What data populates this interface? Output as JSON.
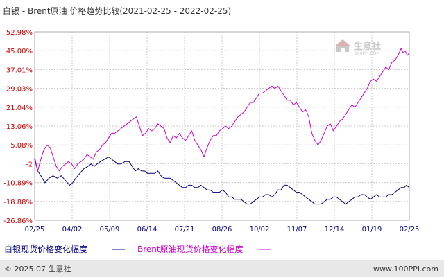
{
  "chart_data": {
    "type": "line",
    "title": "白银 - Brent原油 价格趋势比较(2021-02-25 - 2022-02-25)",
    "y_ticks": [
      "52.98%",
      "45.00%",
      "37.01%",
      "29.03%",
      "21.04%",
      "13.06%",
      "5.08%",
      "-2",
      "-10.89%",
      "-18.88%",
      "-26.86%"
    ],
    "ylim": [
      -26.86,
      52.98
    ],
    "x_ticks": [
      "02/25",
      "04/02",
      "05/09",
      "06/14",
      "07/21",
      "08/26",
      "10/02",
      "11/07",
      "12/14",
      "01/19",
      "02/25"
    ],
    "x_range": [
      "2021-02-25",
      "2022-02-25"
    ],
    "grid": true,
    "legend_position": "bottom-left",
    "series": [
      {
        "name": "白银现货价格变化幅度",
        "color": "#000080",
        "points": [
          [
            0,
            -1
          ],
          [
            3,
            -6
          ],
          [
            6,
            -8
          ],
          [
            10,
            -11
          ],
          [
            14,
            -9
          ],
          [
            18,
            -8
          ],
          [
            22,
            -9
          ],
          [
            26,
            -8
          ],
          [
            30,
            -10
          ],
          [
            34,
            -12
          ],
          [
            37,
            -11
          ],
          [
            40,
            -9
          ],
          [
            44,
            -7
          ],
          [
            48,
            -5
          ],
          [
            52,
            -4
          ],
          [
            55,
            -3
          ],
          [
            58,
            -4
          ],
          [
            61,
            -3
          ],
          [
            64,
            -2
          ],
          [
            68,
            -1
          ],
          [
            72,
            0
          ],
          [
            75,
            -1
          ],
          [
            78,
            -2
          ],
          [
            81,
            -3
          ],
          [
            84,
            -3
          ],
          [
            88,
            -2
          ],
          [
            92,
            -2
          ],
          [
            95,
            -4
          ],
          [
            98,
            -6
          ],
          [
            101,
            -5
          ],
          [
            104,
            -6
          ],
          [
            107,
            -6
          ],
          [
            110,
            -7
          ],
          [
            113,
            -7
          ],
          [
            117,
            -7
          ],
          [
            120,
            -6
          ],
          [
            123,
            -8
          ],
          [
            126,
            -9
          ],
          [
            129,
            -9
          ],
          [
            132,
            -9
          ],
          [
            135,
            -10
          ],
          [
            138,
            -11
          ],
          [
            141,
            -12
          ],
          [
            144,
            -13
          ],
          [
            147,
            -13
          ],
          [
            150,
            -12
          ],
          [
            153,
            -12
          ],
          [
            156,
            -13
          ],
          [
            159,
            -13
          ],
          [
            162,
            -12
          ],
          [
            165,
            -13
          ],
          [
            168,
            -14
          ],
          [
            171,
            -14
          ],
          [
            174,
            -15
          ],
          [
            177,
            -15
          ],
          [
            180,
            -15
          ],
          [
            183,
            -14
          ],
          [
            186,
            -15
          ],
          [
            189,
            -17
          ],
          [
            192,
            -17
          ],
          [
            195,
            -18
          ],
          [
            198,
            -18
          ],
          [
            201,
            -18
          ],
          [
            204,
            -19
          ],
          [
            207,
            -20
          ],
          [
            210,
            -20
          ],
          [
            213,
            -19
          ],
          [
            216,
            -18
          ],
          [
            219,
            -17
          ],
          [
            222,
            -17
          ],
          [
            225,
            -16
          ],
          [
            228,
            -16
          ],
          [
            231,
            -17
          ],
          [
            234,
            -16
          ],
          [
            237,
            -14
          ],
          [
            240,
            -14
          ],
          [
            243,
            -12
          ],
          [
            246,
            -12
          ],
          [
            249,
            -13
          ],
          [
            252,
            -14
          ],
          [
            255,
            -15
          ],
          [
            258,
            -15
          ],
          [
            261,
            -16
          ],
          [
            264,
            -17
          ],
          [
            267,
            -18
          ],
          [
            270,
            -19
          ],
          [
            273,
            -20
          ],
          [
            276,
            -20
          ],
          [
            279,
            -20
          ],
          [
            282,
            -19
          ],
          [
            285,
            -18
          ],
          [
            288,
            -18
          ],
          [
            291,
            -17
          ],
          [
            294,
            -17
          ],
          [
            297,
            -18
          ],
          [
            300,
            -19
          ],
          [
            303,
            -20
          ],
          [
            306,
            -19
          ],
          [
            309,
            -18
          ],
          [
            312,
            -17
          ],
          [
            315,
            -17
          ],
          [
            318,
            -16
          ],
          [
            321,
            -16
          ],
          [
            324,
            -17
          ],
          [
            327,
            -18
          ],
          [
            330,
            -17
          ],
          [
            333,
            -16
          ],
          [
            336,
            -17
          ],
          [
            339,
            -17
          ],
          [
            342,
            -17
          ],
          [
            345,
            -16
          ],
          [
            348,
            -16
          ],
          [
            351,
            -15
          ],
          [
            354,
            -14
          ],
          [
            357,
            -13
          ],
          [
            360,
            -13
          ],
          [
            362,
            -12
          ],
          [
            365,
            -13
          ]
        ]
      },
      {
        "name": "Brent原油现货价格变化幅度",
        "color": "#cc00cc",
        "points": [
          [
            0,
            0
          ],
          [
            3,
            -6
          ],
          [
            6,
            -1
          ],
          [
            9,
            3
          ],
          [
            12,
            5
          ],
          [
            15,
            4
          ],
          [
            18,
            0
          ],
          [
            21,
            -4
          ],
          [
            24,
            -6
          ],
          [
            27,
            -4
          ],
          [
            30,
            -3
          ],
          [
            33,
            -2
          ],
          [
            36,
            -3
          ],
          [
            39,
            -5
          ],
          [
            42,
            -3
          ],
          [
            45,
            -2
          ],
          [
            48,
            -1
          ],
          [
            51,
            1
          ],
          [
            54,
            0
          ],
          [
            57,
            -1
          ],
          [
            60,
            2
          ],
          [
            63,
            3
          ],
          [
            66,
            5
          ],
          [
            69,
            6
          ],
          [
            72,
            8
          ],
          [
            75,
            10
          ],
          [
            78,
            10
          ],
          [
            81,
            11
          ],
          [
            84,
            12
          ],
          [
            87,
            13
          ],
          [
            90,
            14
          ],
          [
            93,
            15
          ],
          [
            96,
            16
          ],
          [
            99,
            17
          ],
          [
            102,
            13
          ],
          [
            105,
            9
          ],
          [
            108,
            10
          ],
          [
            111,
            12
          ],
          [
            114,
            11
          ],
          [
            117,
            12
          ],
          [
            120,
            14
          ],
          [
            123,
            13
          ],
          [
            126,
            12
          ],
          [
            129,
            8
          ],
          [
            132,
            6
          ],
          [
            135,
            9
          ],
          [
            138,
            8
          ],
          [
            141,
            10
          ],
          [
            144,
            8
          ],
          [
            147,
            7
          ],
          [
            150,
            9
          ],
          [
            153,
            11
          ],
          [
            156,
            7
          ],
          [
            159,
            5
          ],
          [
            162,
            3
          ],
          [
            165,
            0
          ],
          [
            168,
            4
          ],
          [
            171,
            7
          ],
          [
            174,
            9
          ],
          [
            177,
            9
          ],
          [
            180,
            11
          ],
          [
            183,
            12
          ],
          [
            186,
            13
          ],
          [
            189,
            12
          ],
          [
            192,
            13
          ],
          [
            195,
            15
          ],
          [
            198,
            17
          ],
          [
            201,
            18
          ],
          [
            204,
            19
          ],
          [
            207,
            21
          ],
          [
            210,
            23
          ],
          [
            213,
            23
          ],
          [
            216,
            25
          ],
          [
            219,
            27
          ],
          [
            222,
            27
          ],
          [
            225,
            28
          ],
          [
            228,
            29
          ],
          [
            231,
            30
          ],
          [
            234,
            29
          ],
          [
            237,
            30
          ],
          [
            240,
            28
          ],
          [
            243,
            26
          ],
          [
            246,
            24
          ],
          [
            249,
            24
          ],
          [
            252,
            22
          ],
          [
            255,
            23
          ],
          [
            258,
            21
          ],
          [
            261,
            19
          ],
          [
            264,
            20
          ],
          [
            267,
            17
          ],
          [
            270,
            10
          ],
          [
            273,
            7
          ],
          [
            276,
            5
          ],
          [
            279,
            7
          ],
          [
            282,
            10
          ],
          [
            285,
            13
          ],
          [
            288,
            14
          ],
          [
            291,
            11
          ],
          [
            294,
            13
          ],
          [
            297,
            15
          ],
          [
            300,
            16
          ],
          [
            303,
            18
          ],
          [
            306,
            20
          ],
          [
            309,
            22
          ],
          [
            312,
            21
          ],
          [
            315,
            23
          ],
          [
            318,
            25
          ],
          [
            321,
            27
          ],
          [
            324,
            29
          ],
          [
            327,
            32
          ],
          [
            330,
            33
          ],
          [
            333,
            32
          ],
          [
            336,
            34
          ],
          [
            339,
            36
          ],
          [
            342,
            38
          ],
          [
            345,
            37
          ],
          [
            348,
            40
          ],
          [
            351,
            41
          ],
          [
            354,
            43
          ],
          [
            357,
            46
          ],
          [
            359,
            44
          ],
          [
            361,
            45
          ],
          [
            363,
            43
          ],
          [
            365,
            44
          ]
        ]
      }
    ]
  },
  "legend": {
    "silver_label": "白银现货价格变化幅度",
    "brent_label": "Brent原油现货价格变化幅度"
  },
  "logo": {
    "name": "生意社",
    "url": "100PPI.COM"
  },
  "footer": {
    "left": "© 2025.07 生意社",
    "right": "www.100PPI.com"
  }
}
